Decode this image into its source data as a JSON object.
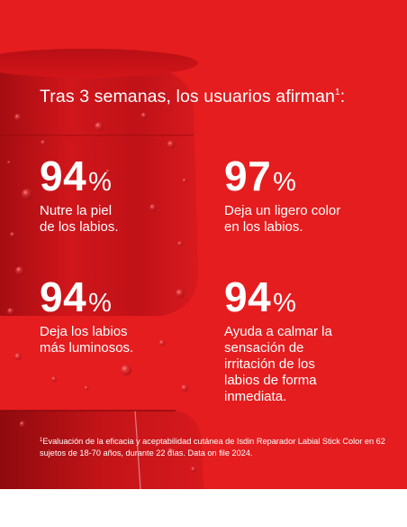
{
  "headline": {
    "text": "Tras 3 semanas, los usuarios afirman",
    "ref": "1",
    "suffix": ":"
  },
  "stats": [
    {
      "value": "94",
      "unit": "%",
      "description": "Nutre la piel\nde los labios."
    },
    {
      "value": "97",
      "unit": "%",
      "description": "Deja un ligero color\nen los labios."
    },
    {
      "value": "94",
      "unit": "%",
      "description": "Deja los labios\nmás luminosos."
    },
    {
      "value": "94",
      "unit": "%",
      "description": "Ayuda a calmar la\nsensación de\nirritación de los\nlabios de forma\ninmediata."
    }
  ],
  "footnote": {
    "ref": "1",
    "text": "Evaluación de la eficacia y aceptabilidad cutánea de Isdin Reparador Labial Stick Color en 62 sujetos de 18-70 años, durante 22 días. Data on file 2024."
  },
  "colors": {
    "background_red": "#e51d1f",
    "lipstick_red": "#c8141a",
    "text": "#ffffff"
  }
}
